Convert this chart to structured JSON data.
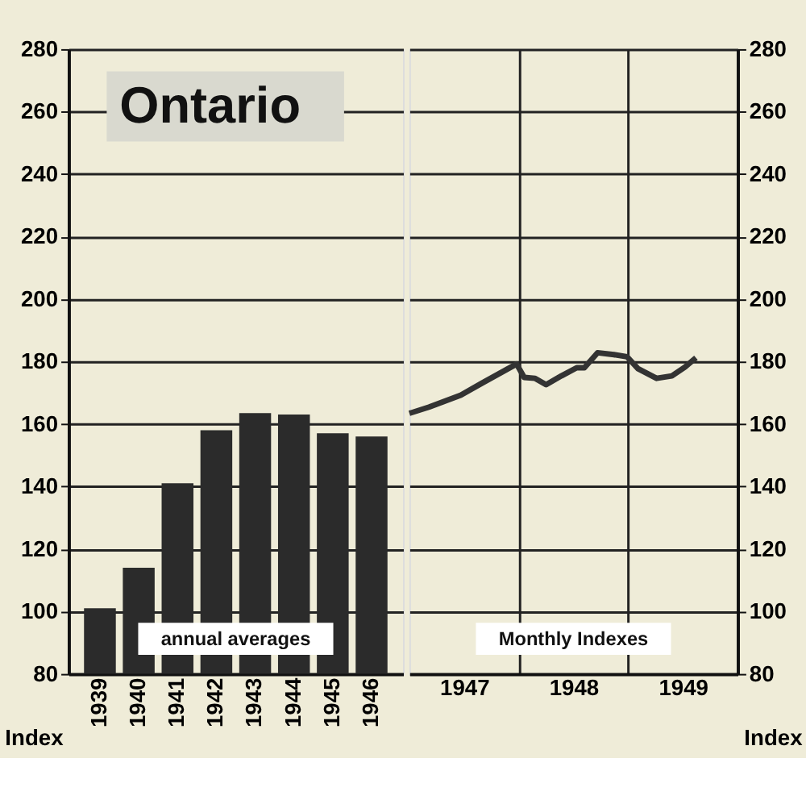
{
  "chart_data": [
    {
      "type": "bar",
      "title": "Ontario",
      "ylabel": "Index",
      "categories": [
        "1939",
        "1940",
        "1941",
        "1942",
        "1943",
        "1944",
        "1945",
        "1946"
      ],
      "values": [
        101,
        114,
        141,
        158,
        163.5,
        163,
        157,
        156
      ],
      "color": "#2b2b2b",
      "ylim": [
        80,
        280
      ],
      "yticks": [
        80,
        100,
        120,
        140,
        160,
        180,
        200,
        220,
        240,
        260,
        280
      ],
      "grid": "y",
      "annotations": [
        "annual averages"
      ]
    },
    {
      "type": "line",
      "y2label": "Index",
      "x": [
        1947.0,
        1947.18,
        1947.47,
        1947.66,
        1947.98,
        1948.05,
        1948.15,
        1948.25,
        1948.39,
        1948.53,
        1948.6,
        1948.72,
        1948.87,
        1948.99,
        1949.09,
        1949.26,
        1949.4,
        1949.52,
        1949.62
      ],
      "series": [
        {
          "color": "#333333",
          "axis": "y2",
          "values": [
            163.4,
            165.4,
            169.2,
            173,
            179.2,
            174.9,
            174.6,
            172.6,
            175.4,
            178,
            178,
            182.8,
            182.2,
            181.5,
            177.7,
            174.6,
            175.4,
            178.2,
            181.2
          ]
        }
      ],
      "y2lim": [
        80,
        280
      ],
      "y2ticks": [
        80,
        100,
        120,
        140,
        160,
        180,
        200,
        220,
        240,
        260,
        280
      ],
      "xlim": [
        1947,
        1950
      ],
      "xticks": [
        {
          "value": 1947.5,
          "label": "1947"
        },
        {
          "value": 1948,
          "label": null
        },
        {
          "value": 1948.5,
          "label": "1948"
        },
        {
          "value": 1949,
          "label": null
        },
        {
          "value": 1949.5,
          "label": "1949"
        }
      ],
      "grid": true,
      "annotations": [
        "Monthly Indexes"
      ]
    }
  ]
}
